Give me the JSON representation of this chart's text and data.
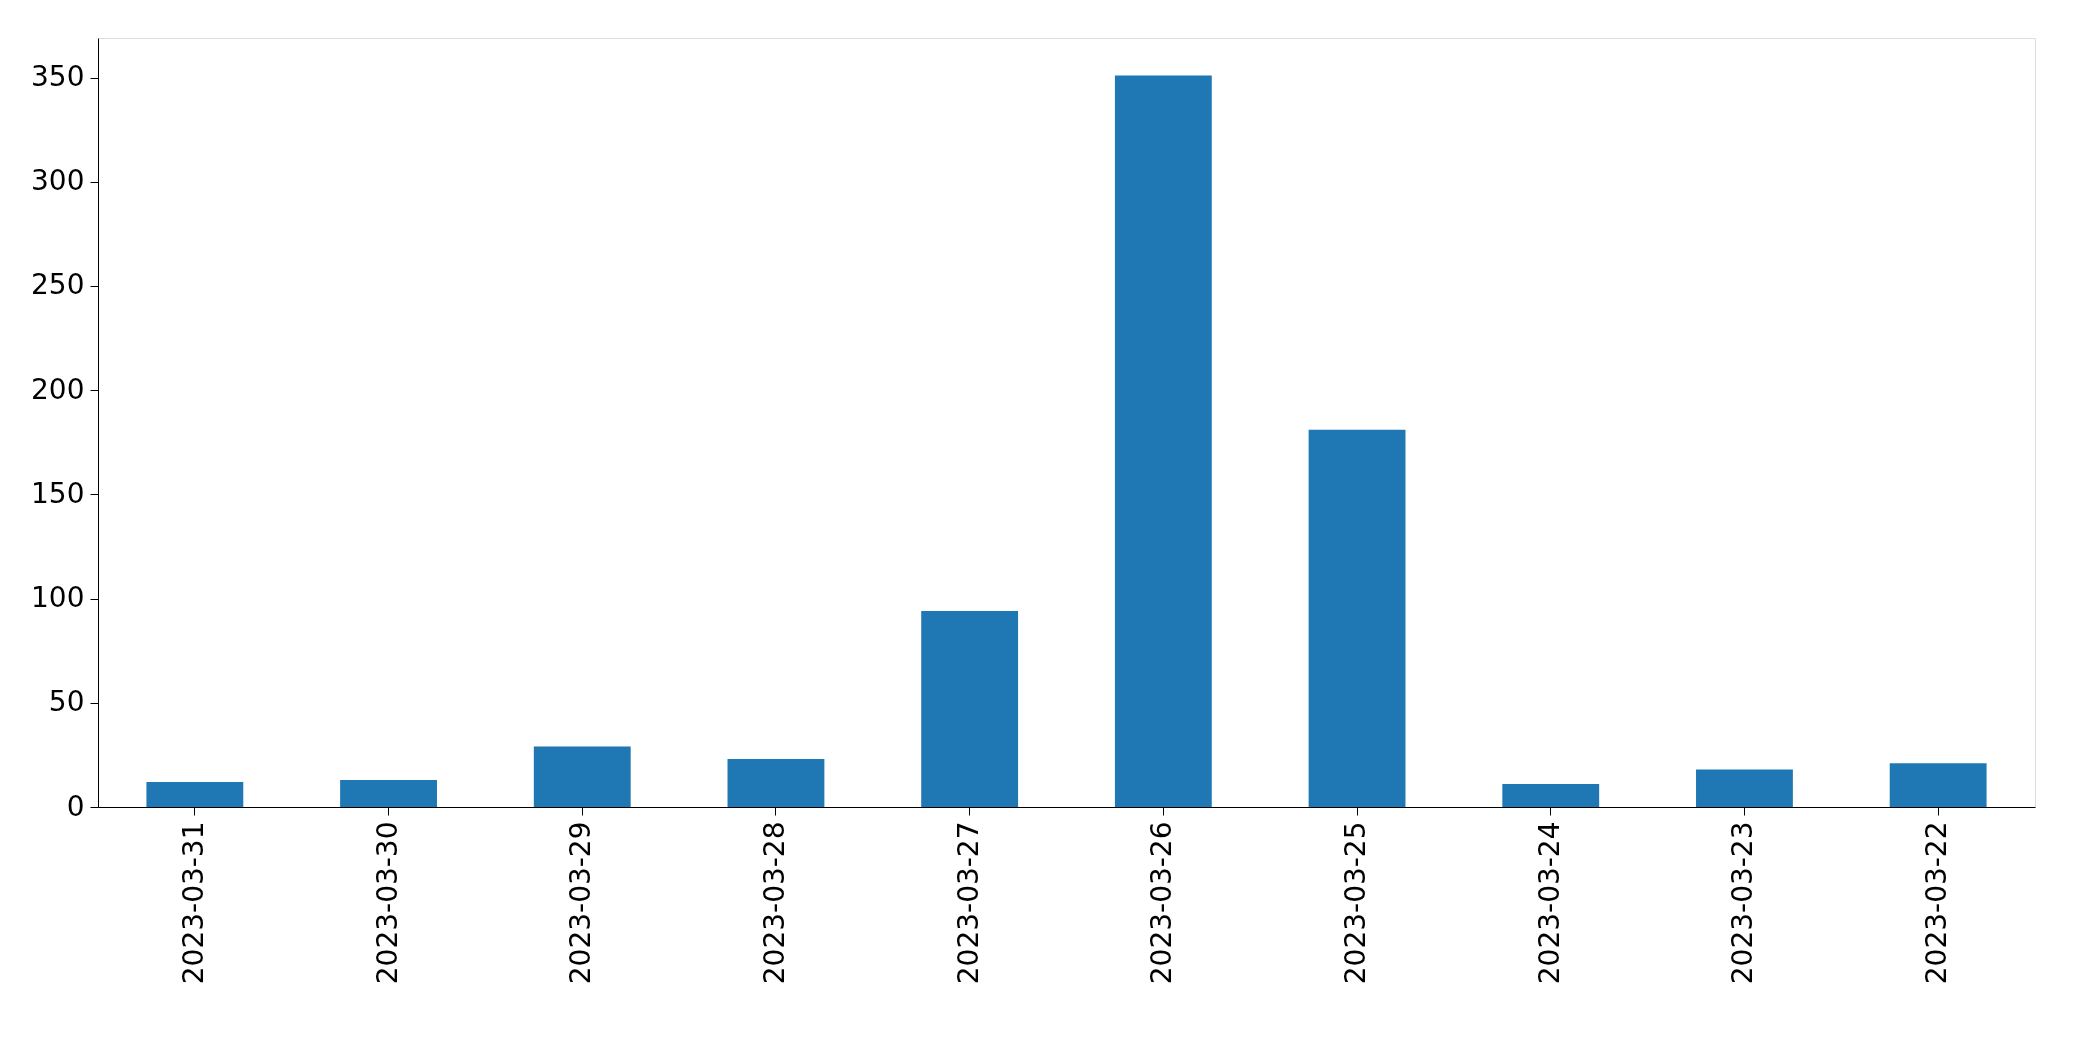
{
  "chart_data": {
    "type": "bar",
    "categories": [
      "2023-03-31",
      "2023-03-30",
      "2023-03-29",
      "2023-03-28",
      "2023-03-27",
      "2023-03-26",
      "2023-03-25",
      "2023-03-24",
      "2023-03-23",
      "2023-03-22"
    ],
    "values": [
      12,
      13,
      29,
      23,
      94,
      351,
      181,
      11,
      18,
      21
    ],
    "color": "#1f77b4",
    "ylim": [
      0,
      369
    ],
    "yticks": [
      0,
      50,
      100,
      150,
      200,
      250,
      300,
      350
    ],
    "grid": false
  }
}
